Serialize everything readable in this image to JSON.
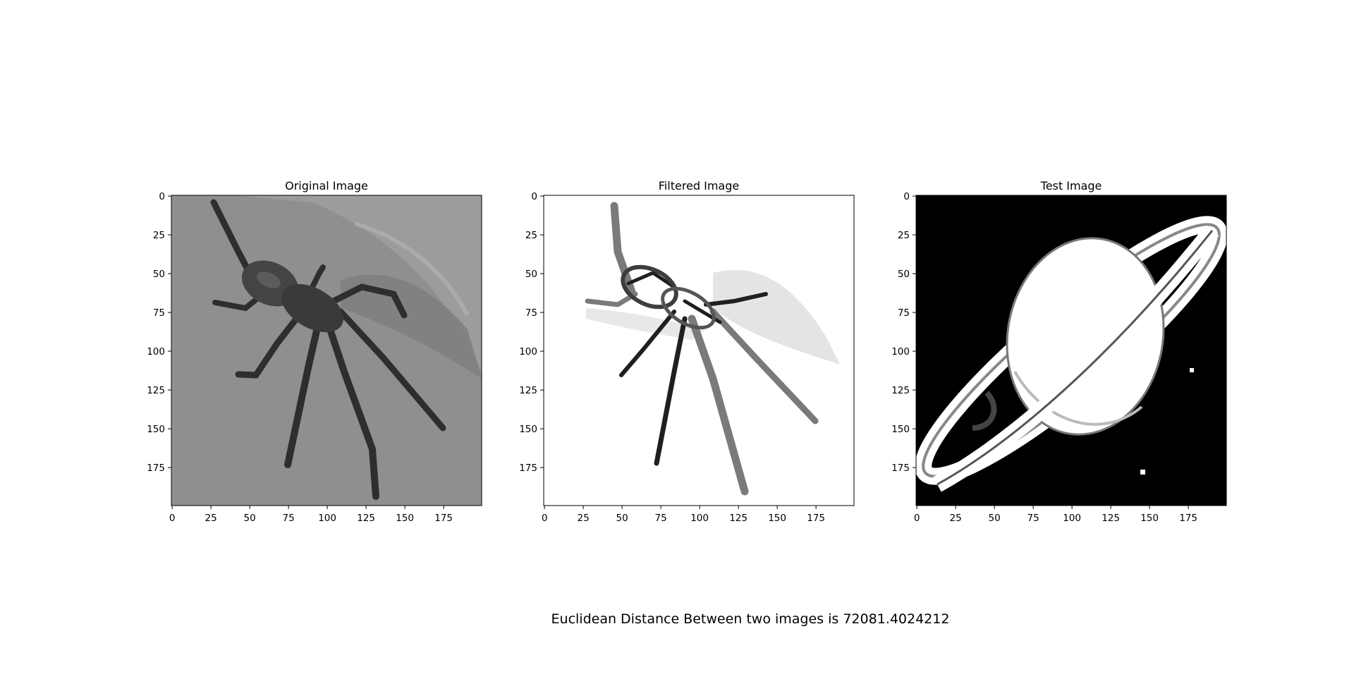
{
  "figure": {
    "panels": [
      {
        "id": "original",
        "title": "Original Image",
        "icon": "spider-image",
        "background": "#8c8c8c",
        "figure_color": "#3a3a3a"
      },
      {
        "id": "filtered",
        "title": "Filtered Image",
        "icon": "filtered-spider-image",
        "background": "#ffffff",
        "figure_color": "#444444"
      },
      {
        "id": "test",
        "title": "Test Image",
        "icon": "saturn-image",
        "background": "#000000",
        "figure_color": "#ffffff"
      }
    ],
    "x_ticks": [
      "0",
      "25",
      "50",
      "75",
      "100",
      "125",
      "150",
      "175"
    ],
    "y_ticks": [
      "0",
      "25",
      "50",
      "75",
      "100",
      "125",
      "150",
      "175"
    ],
    "axis_range": [
      0,
      200
    ],
    "caption": "Euclidean Distance Between two images is 72081.4024212"
  }
}
